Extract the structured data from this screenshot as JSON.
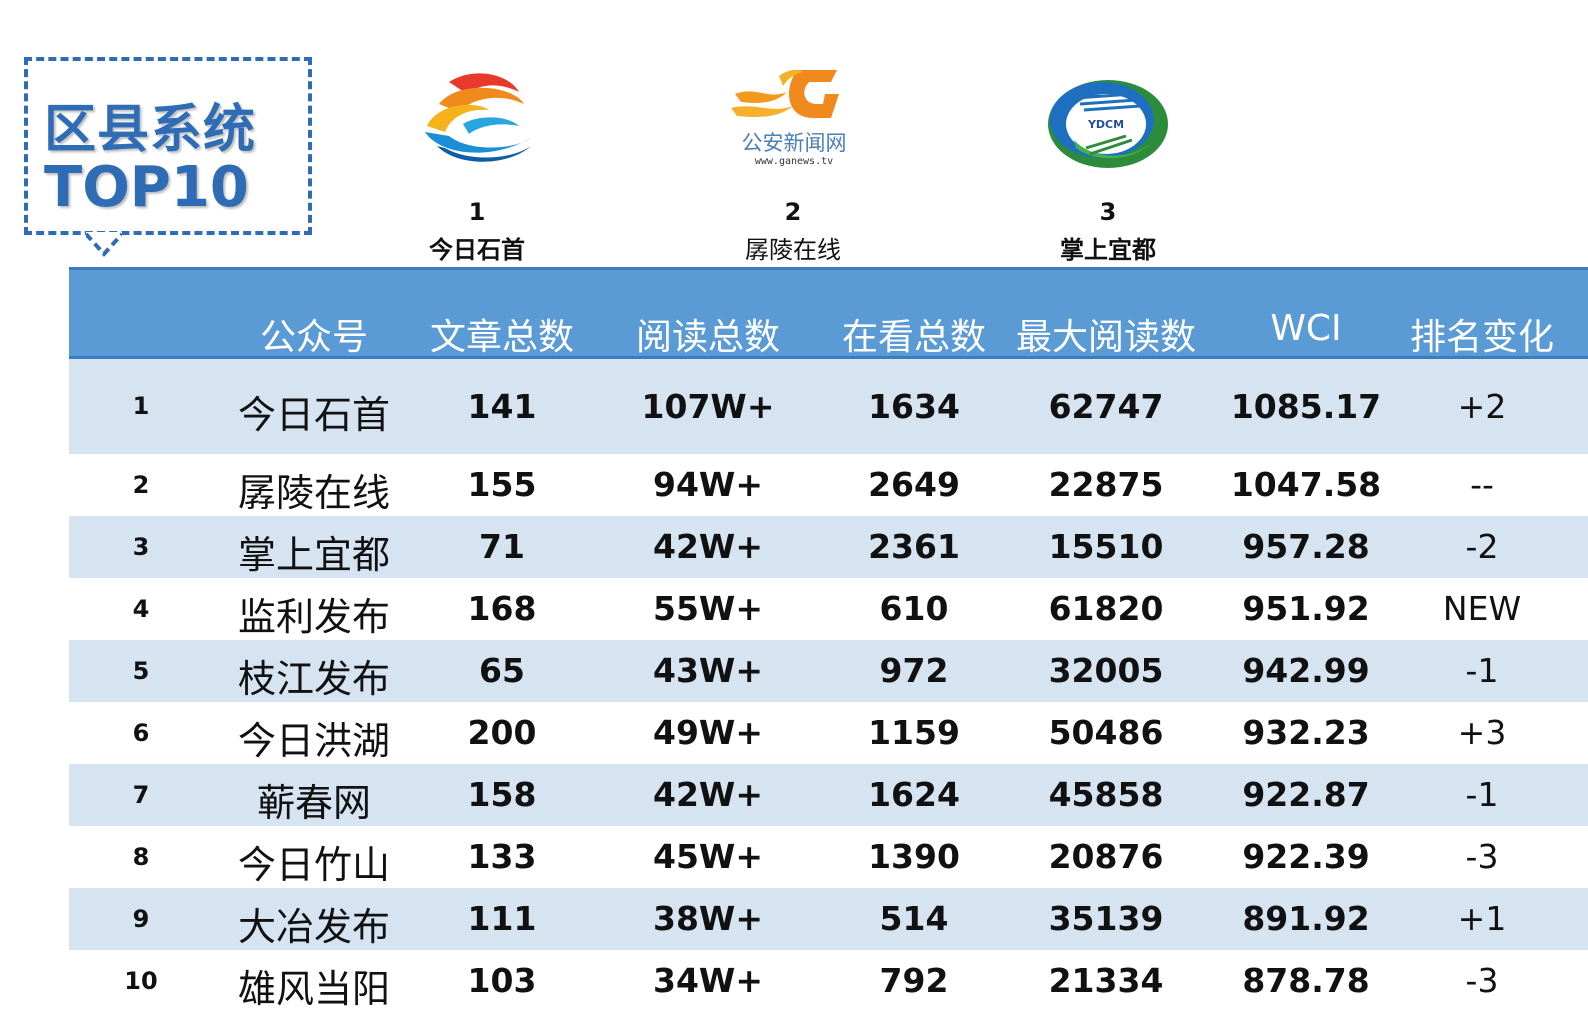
{
  "title": {
    "line1": "区县系统",
    "line2": "TOP10"
  },
  "podium": [
    {
      "rank": "1",
      "name": "今日石首",
      "logo": "jinri-shishou-logo"
    },
    {
      "rank": "2",
      "name": "孱陵在线",
      "logo": "ganews-logo",
      "logo_text": "公安新闻网",
      "logo_url": "www.ganews.tv"
    },
    {
      "rank": "3",
      "name": "掌上宜都",
      "logo": "ydcm-logo",
      "logo_text": "YDCM"
    }
  ],
  "table": {
    "headers": [
      "公众号",
      "文章总数",
      "阅读总数",
      "在看总数",
      "最大阅读数",
      "WCI",
      "排名变化"
    ],
    "rows": [
      {
        "rank": "1",
        "name": "今日石首",
        "articles": "141",
        "reads": "107W+",
        "watching": "1634",
        "max_reads": "62747",
        "wci": "1085.17",
        "change": "+2"
      },
      {
        "rank": "2",
        "name": "孱陵在线",
        "articles": "155",
        "reads": "94W+",
        "watching": "2649",
        "max_reads": "22875",
        "wci": "1047.58",
        "change": "--"
      },
      {
        "rank": "3",
        "name": "掌上宜都",
        "articles": "71",
        "reads": "42W+",
        "watching": "2361",
        "max_reads": "15510",
        "wci": "957.28",
        "change": "-2"
      },
      {
        "rank": "4",
        "name": "监利发布",
        "articles": "168",
        "reads": "55W+",
        "watching": "610",
        "max_reads": "61820",
        "wci": "951.92",
        "change": "NEW"
      },
      {
        "rank": "5",
        "name": "枝江发布",
        "articles": "65",
        "reads": "43W+",
        "watching": "972",
        "max_reads": "32005",
        "wci": "942.99",
        "change": "-1"
      },
      {
        "rank": "6",
        "name": "今日洪湖",
        "articles": "200",
        "reads": "49W+",
        "watching": "1159",
        "max_reads": "50486",
        "wci": "932.23",
        "change": "+3"
      },
      {
        "rank": "7",
        "name": "蕲春网",
        "articles": "158",
        "reads": "42W+",
        "watching": "1624",
        "max_reads": "45858",
        "wci": "922.87",
        "change": "-1"
      },
      {
        "rank": "8",
        "name": "今日竹山",
        "articles": "133",
        "reads": "45W+",
        "watching": "1390",
        "max_reads": "20876",
        "wci": "922.39",
        "change": "-3"
      },
      {
        "rank": "9",
        "name": "大冶发布",
        "articles": "111",
        "reads": "38W+",
        "watching": "514",
        "max_reads": "35139",
        "wci": "891.92",
        "change": "+1"
      },
      {
        "rank": "10",
        "name": "雄风当阳",
        "articles": "103",
        "reads": "34W+",
        "watching": "792",
        "max_reads": "21334",
        "wci": "878.78",
        "change": "-3"
      }
    ]
  },
  "colors": {
    "accent": "#2e6cb5",
    "header_bg": "#5b9bd5",
    "row_shade": "#d6e4f2"
  }
}
